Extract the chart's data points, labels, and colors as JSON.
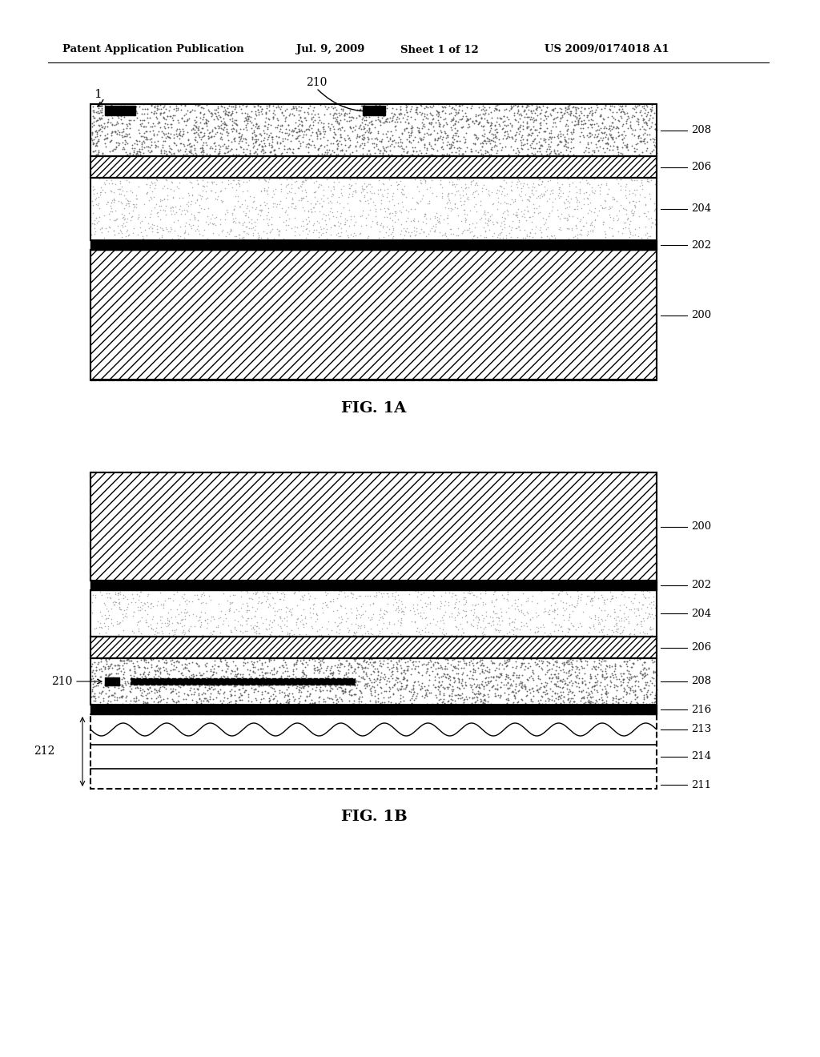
{
  "fig_width": 10.24,
  "fig_height": 13.2,
  "bg_color": "#ffffff",
  "header_text": "Patent Application Publication",
  "header_date": "Jul. 9, 2009",
  "header_sheet": "Sheet 1 of 12",
  "header_patent": "US 2009/0174018 A1",
  "fig1a_label": "FIG. 1A",
  "fig1b_label": "FIG. 1B"
}
